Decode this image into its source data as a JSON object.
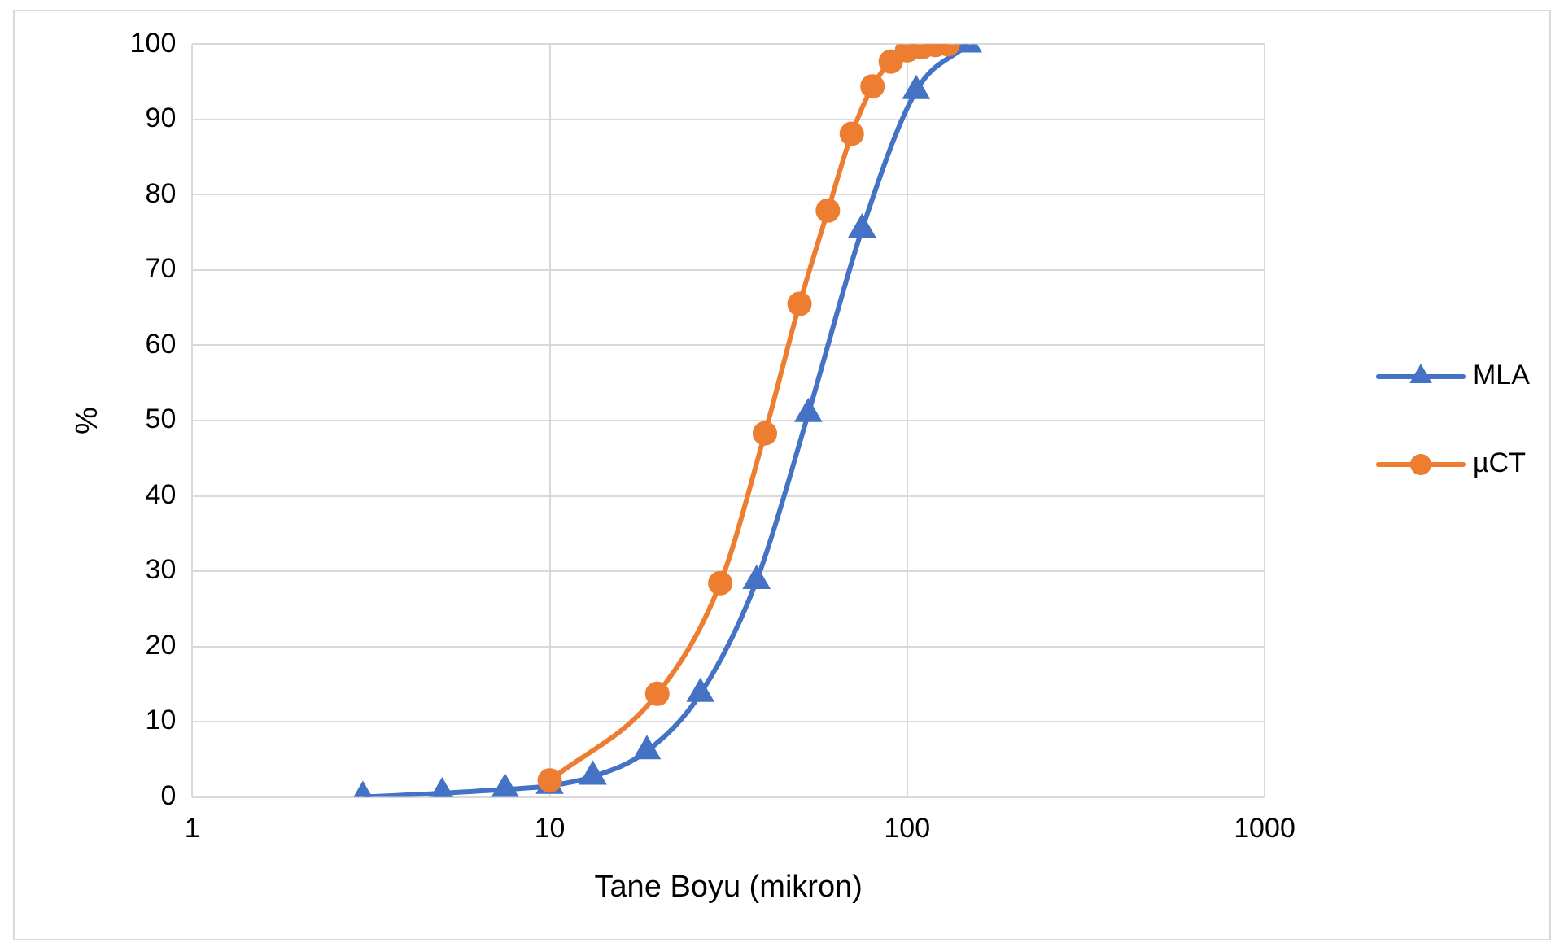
{
  "chart_data": {
    "type": "line",
    "xlabel": "Tane Boyu (mikron)",
    "ylabel": "%",
    "log": "x",
    "xlim": [
      1,
      1000
    ],
    "xticks": [
      1,
      10,
      100,
      1000
    ],
    "ylim": [
      0,
      100
    ],
    "yticks": [
      0,
      10,
      20,
      30,
      40,
      50,
      60,
      70,
      80,
      90,
      100
    ],
    "grid": true,
    "legend": "right",
    "series": [
      {
        "name": "MLA",
        "color": "#4472c4",
        "marker": "triangle",
        "x": [
          3,
          5,
          7.5,
          10,
          13.2,
          18.7,
          26.4,
          37.9,
          52.9,
          74.8,
          106,
          148
        ],
        "values": [
          0,
          0.5,
          1,
          1.5,
          2.7,
          6.1,
          13.7,
          28.7,
          50.9,
          75.4,
          93.8,
          100
        ]
      },
      {
        "name": "µCT",
        "color": "#ed7d31",
        "marker": "circle",
        "x": [
          10,
          20,
          30,
          40,
          50,
          60,
          70,
          80,
          90,
          100,
          110,
          120,
          130
        ],
        "values": [
          2.2,
          13.7,
          28.4,
          48.3,
          65.5,
          77.9,
          88.1,
          94.4,
          97.7,
          99.2,
          99.6,
          99.9,
          100
        ]
      }
    ]
  }
}
